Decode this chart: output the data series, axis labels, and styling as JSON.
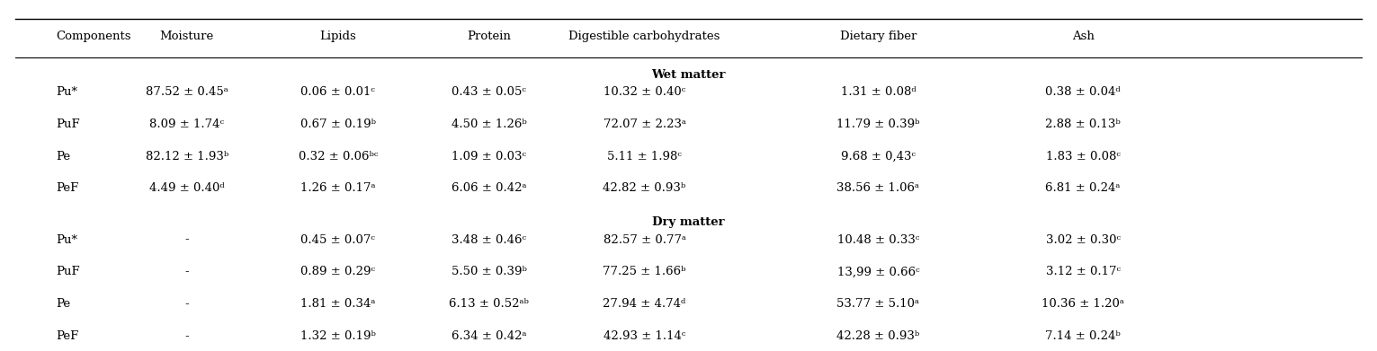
{
  "headers": [
    "Components",
    "Moisture",
    "Lipids",
    "Protein",
    "Digestible carbohydrates",
    "Dietary fiber",
    "Ash"
  ],
  "section_wet": "Wet matter",
  "section_dry": "Dry matter",
  "wet_rows": [
    [
      "Pu*",
      "87.52 ± 0.45ᵃ",
      "0.06 ± 0.01ᶜ",
      "0.43 ± 0.05ᶜ",
      "10.32 ± 0.40ᶜ",
      "1.31 ± 0.08ᵈ",
      "0.38 ± 0.04ᵈ"
    ],
    [
      "PuF",
      "8.09 ± 1.74ᶜ",
      "0.67 ± 0.19ᵇ",
      "4.50 ± 1.26ᵇ",
      "72.07 ± 2.23ᵃ",
      "11.79 ± 0.39ᵇ",
      "2.88 ± 0.13ᵇ"
    ],
    [
      "Pe",
      "82.12 ± 1.93ᵇ",
      "0.32 ± 0.06ᵇᶜ",
      "1.09 ± 0.03ᶜ",
      "5.11 ± 1.98ᶜ",
      "9.68 ± 0,43ᶜ",
      "1.83 ± 0.08ᶜ"
    ],
    [
      "PeF",
      "4.49 ± 0.40ᵈ",
      "1.26 ± 0.17ᵃ",
      "6.06 ± 0.42ᵃ",
      "42.82 ± 0.93ᵇ",
      "38.56 ± 1.06ᵃ",
      "6.81 ± 0.24ᵃ"
    ]
  ],
  "dry_rows": [
    [
      "Pu*",
      "-",
      "0.45 ± 0.07ᶜ",
      "3.48 ± 0.46ᶜ",
      "82.57 ± 0.77ᵃ",
      "10.48 ± 0.33ᶜ",
      "3.02 ± 0.30ᶜ"
    ],
    [
      "PuF",
      "-",
      "0.89 ± 0.29ᶜ",
      "5.50 ± 0.39ᵇ",
      "77.25 ± 1.66ᵇ",
      "13,99 ± 0.66ᶜ",
      "3.12 ± 0.17ᶜ"
    ],
    [
      "Pe",
      "-",
      "1.81 ± 0.34ᵃ",
      "6.13 ± 0.52ᵃᵇ",
      "27.94 ± 4.74ᵈ",
      "53.77 ± 5.10ᵃ",
      "10.36 ± 1.20ᵃ"
    ],
    [
      "PeF",
      "-",
      "1.32 ± 0.19ᵇ",
      "6.34 ± 0.42ᵃ",
      "42.93 ± 1.14ᶜ",
      "42.28 ± 0.93ᵇ",
      "7.14 ± 0.24ᵇ"
    ]
  ],
  "bg_color": "#ffffff",
  "text_color": "#000000",
  "font_size": 9.5
}
